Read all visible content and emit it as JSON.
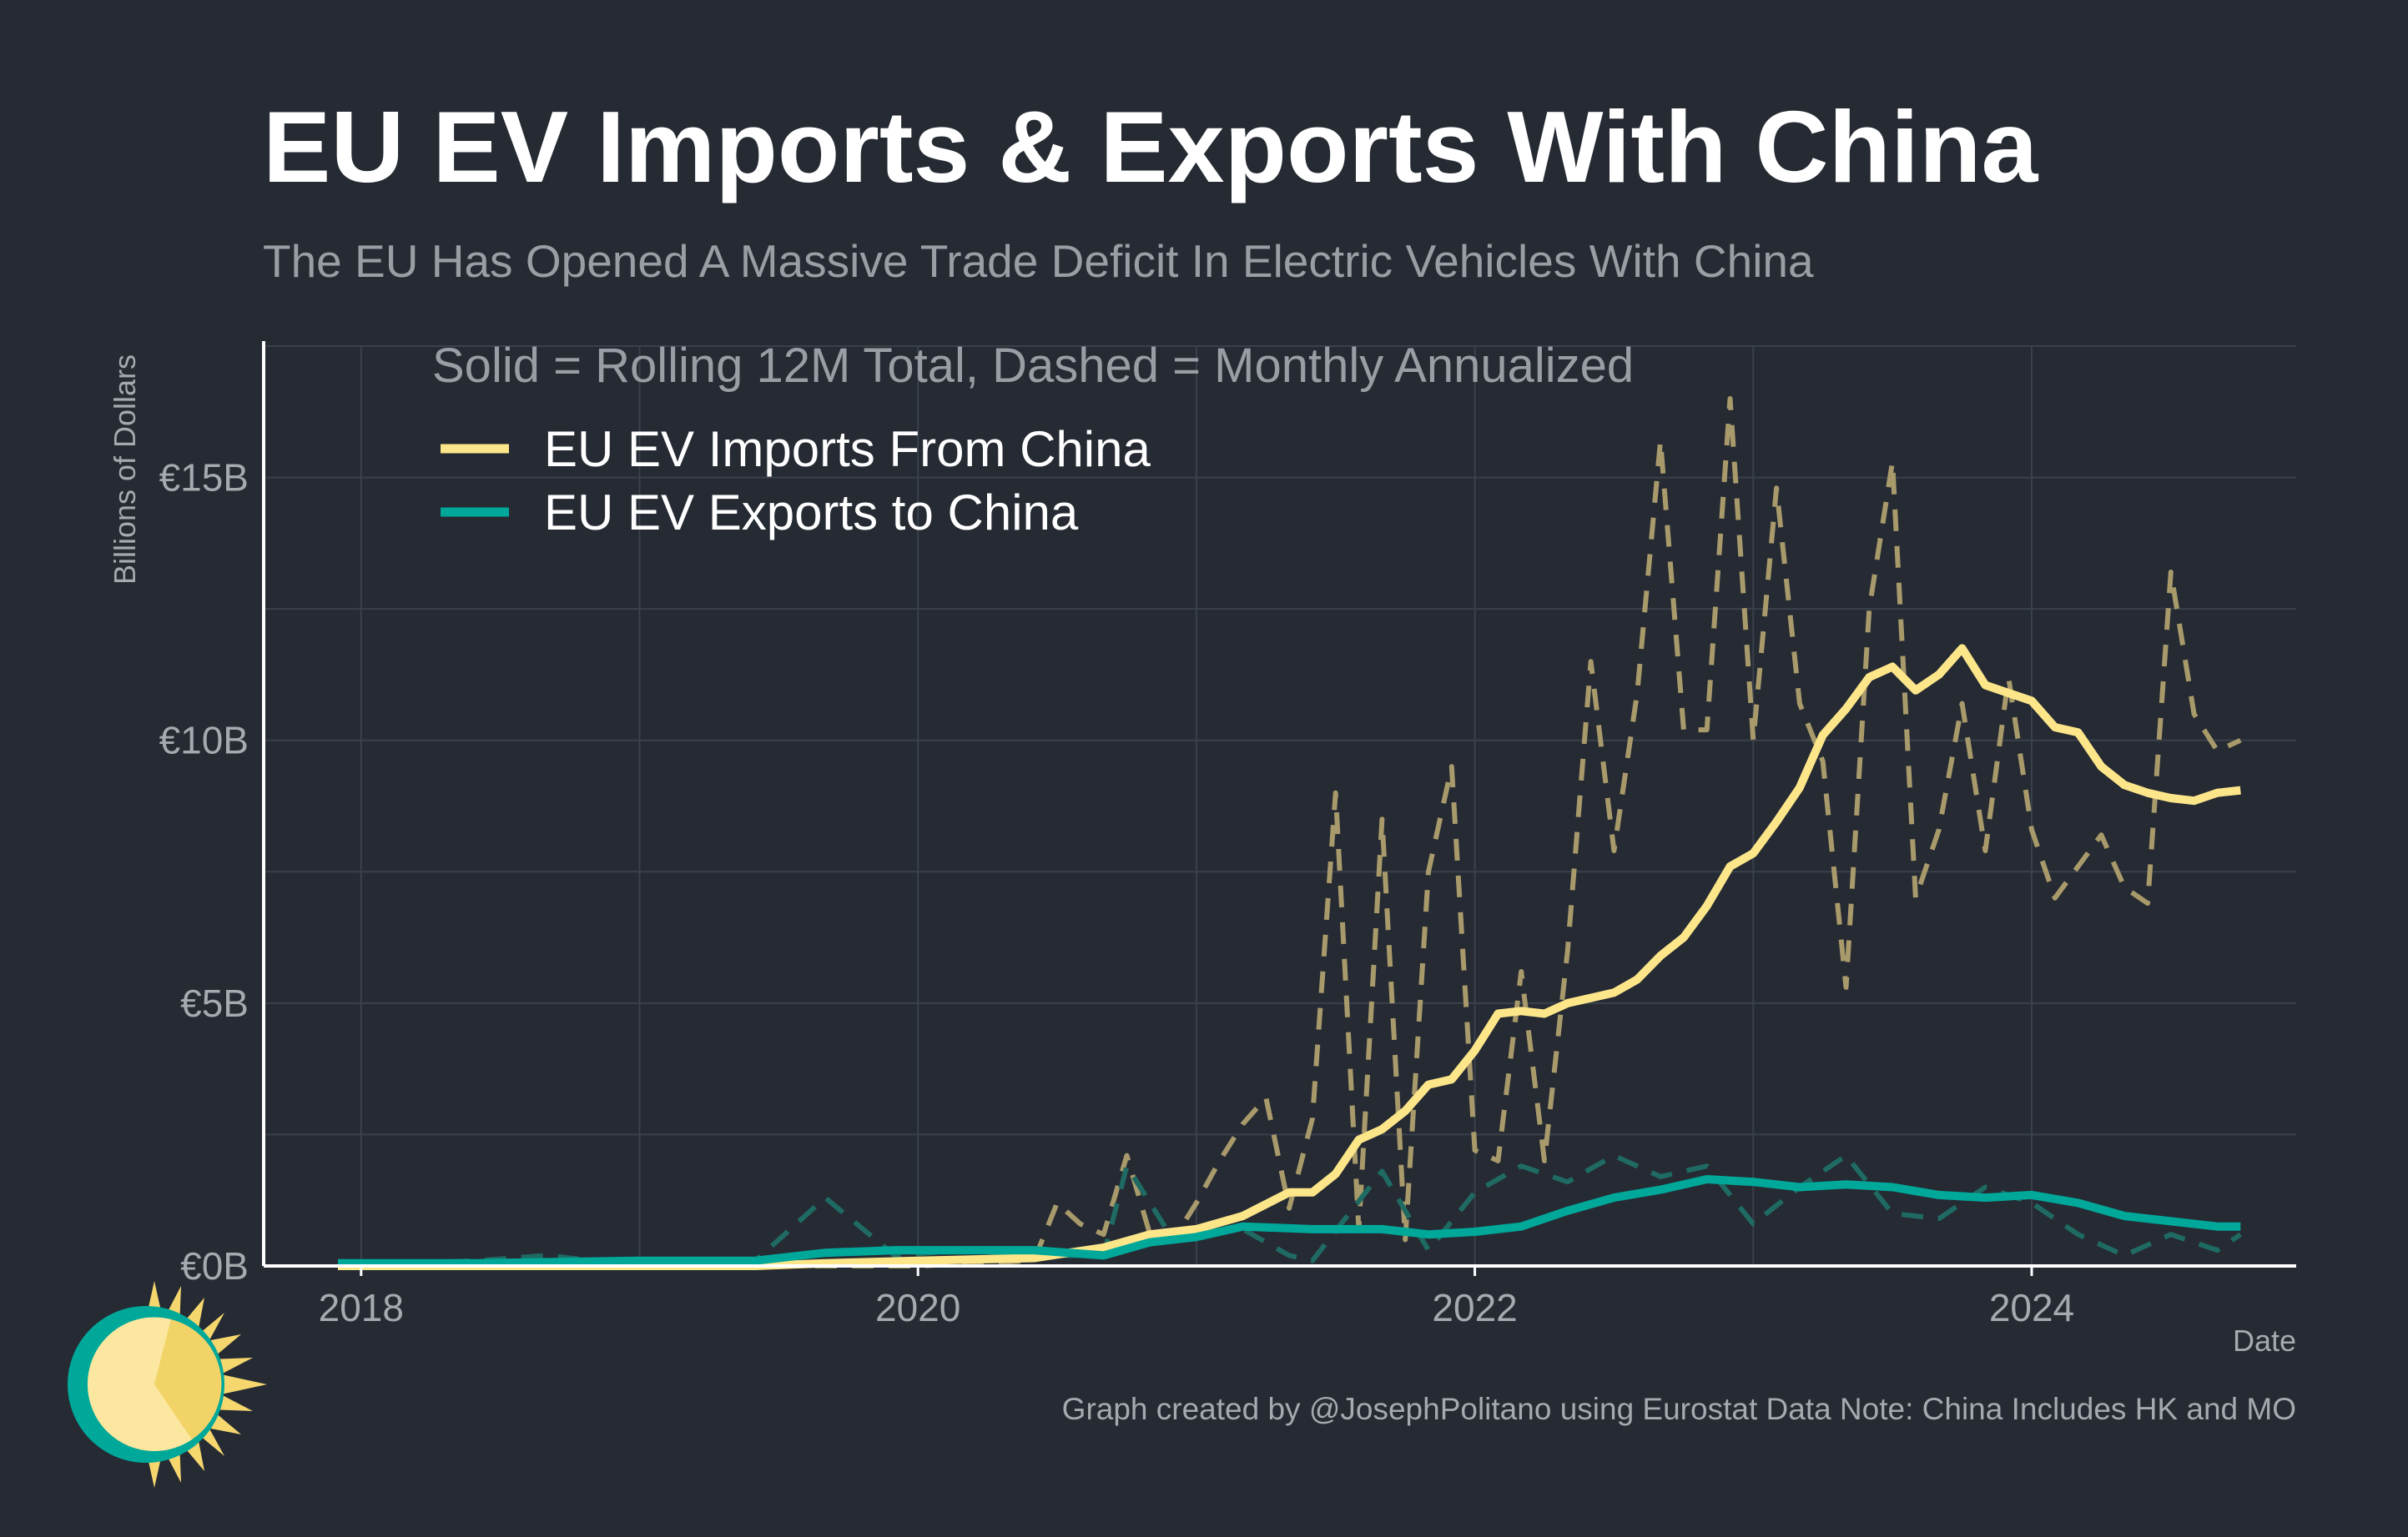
{
  "header": {
    "title": "EU EV Imports & Exports With China",
    "subtitle": "The EU Has Opened A Massive Trade Deficit In Electric Vehicles With China"
  },
  "footer": {
    "caption": "Graph created by @JosephPolitano using Eurostat Data  Note: China Includes HK and MO"
  },
  "chart_data": {
    "type": "line",
    "title": "EU EV Imports & Exports With China",
    "subtitle": "The EU Has Opened A Massive Trade Deficit In Electric Vehicles With China",
    "note": "Solid = Rolling 12M Total, Dashed = Monthly Annualized",
    "xlabel": "Date",
    "ylabel": "Billions of Dollars",
    "x_ticks": [
      "2018",
      "2020",
      "2022",
      "2024"
    ],
    "y_ticks": [
      "€0B",
      "€5B",
      "€10B",
      "€15B"
    ],
    "ylim": [
      0,
      17.5
    ],
    "xlim": [
      2017.65,
      2024.95
    ],
    "grid": true,
    "legend_position": "top-left",
    "colors": {
      "background": "#252a33",
      "grid": "#3b414b",
      "axis": "#ffffff",
      "imports": "#fde68a",
      "imports_dashed": "#a89a6b",
      "exports": "#00a89a",
      "exports_dashed": "#1f6b63"
    },
    "series": [
      {
        "name": "EU EV Imports From China",
        "style": "solid",
        "x": [
          "2017-12",
          "2018-06",
          "2019-01",
          "2019-06",
          "2019-09",
          "2020-01",
          "2020-06",
          "2020-09",
          "2020-11",
          "2021-01",
          "2021-03",
          "2021-05",
          "2021-06",
          "2021-07",
          "2021-08",
          "2021-09",
          "2021-10",
          "2021-11",
          "2021-12",
          "2022-01",
          "2022-02",
          "2022-03",
          "2022-04",
          "2022-05",
          "2022-06",
          "2022-07",
          "2022-08",
          "2022-09",
          "2022-10",
          "2022-11",
          "2022-12",
          "2023-01",
          "2023-02",
          "2023-03",
          "2023-04",
          "2023-05",
          "2023-06",
          "2023-07",
          "2023-08",
          "2023-09",
          "2023-10",
          "2023-11",
          "2023-12",
          "2024-01",
          "2024-02",
          "2024-03",
          "2024-04",
          "2024-05",
          "2024-06",
          "2024-07",
          "2024-08",
          "2024-09",
          "2024-10"
        ],
        "values": [
          0,
          0,
          0,
          0,
          0.05,
          0.1,
          0.15,
          0.35,
          0.6,
          0.7,
          0.95,
          1.4,
          1.4,
          1.75,
          2.4,
          2.6,
          2.95,
          3.45,
          3.55,
          4.1,
          4.8,
          4.85,
          4.8,
          5,
          5.1,
          5.2,
          5.45,
          5.9,
          6.25,
          6.85,
          7.6,
          7.85,
          8.45,
          9.1,
          10.1,
          10.6,
          11.2,
          11.4,
          10.95,
          11.25,
          11.75,
          11.05,
          10.9,
          10.75,
          10.25,
          10.15,
          9.5,
          9.15,
          9,
          8.9,
          8.85,
          9,
          9.05
        ]
      },
      {
        "name": "EU EV Imports From China (Monthly Annualized)",
        "style": "dashed",
        "x": [
          "2017-12",
          "2019-06",
          "2020-01",
          "2020-06",
          "2020-07",
          "2020-08",
          "2020-09",
          "2020-10",
          "2020-11",
          "2020-12",
          "2021-01",
          "2021-02",
          "2021-03",
          "2021-04",
          "2021-05",
          "2021-06",
          "2021-07",
          "2021-08",
          "2021-09",
          "2021-10",
          "2021-11",
          "2021-12",
          "2022-01",
          "2022-02",
          "2022-03",
          "2022-04",
          "2022-05",
          "2022-06",
          "2022-07",
          "2022-08",
          "2022-09",
          "2022-10",
          "2022-11",
          "2022-12",
          "2023-01",
          "2023-02",
          "2023-03",
          "2023-04",
          "2023-05",
          "2023-06",
          "2023-07",
          "2023-08",
          "2023-09",
          "2023-10",
          "2023-11",
          "2023-12",
          "2024-01",
          "2024-02",
          "2024-03",
          "2024-04",
          "2024-05",
          "2024-06",
          "2024-07",
          "2024-08",
          "2024-09",
          "2024-10"
        ],
        "values": [
          0,
          0,
          0,
          0.1,
          1.2,
          0.8,
          0.6,
          2.1,
          0.6,
          0.5,
          1.2,
          2.0,
          2.7,
          3.2,
          1.1,
          2.8,
          9.0,
          0.7,
          8.5,
          0.5,
          7.5,
          9.5,
          2.2,
          2.0,
          5.6,
          2.0,
          6.0,
          11.5,
          7.9,
          10.9,
          15.7,
          10.2,
          10.2,
          16.5,
          10.0,
          14.8,
          10.7,
          9.6,
          5.3,
          12.5,
          15.3,
          7.0,
          8.3,
          10.7,
          7.9,
          11.2,
          8.3,
          7.0,
          7.6,
          8.2,
          7.2,
          6.9,
          13.2,
          10.5,
          9.8,
          10.0
        ]
      },
      {
        "name": "EU EV Exports to China",
        "style": "solid",
        "x": [
          "2017-12",
          "2018-06",
          "2019-01",
          "2019-06",
          "2019-09",
          "2019-12",
          "2020-03",
          "2020-06",
          "2020-09",
          "2020-11",
          "2021-01",
          "2021-03",
          "2021-06",
          "2021-09",
          "2021-11",
          "2022-01",
          "2022-03",
          "2022-05",
          "2022-07",
          "2022-09",
          "2022-11",
          "2023-01",
          "2023-03",
          "2023-05",
          "2023-07",
          "2023-09",
          "2023-11",
          "2024-01",
          "2024-03",
          "2024-05",
          "2024-07",
          "2024-09",
          "2024-10"
        ],
        "values": [
          0.05,
          0.05,
          0.1,
          0.1,
          0.25,
          0.3,
          0.3,
          0.3,
          0.2,
          0.45,
          0.55,
          0.75,
          0.7,
          0.7,
          0.6,
          0.65,
          0.75,
          1.05,
          1.3,
          1.45,
          1.65,
          1.6,
          1.5,
          1.55,
          1.5,
          1.35,
          1.3,
          1.35,
          1.2,
          0.95,
          0.85,
          0.75,
          0.75
        ]
      },
      {
        "name": "EU EV Exports to China (Monthly Annualized)",
        "style": "dashed",
        "x": [
          "2017-12",
          "2018-06",
          "2018-09",
          "2019-01",
          "2019-06",
          "2019-09",
          "2019-12",
          "2020-03",
          "2020-06",
          "2020-09",
          "2020-10",
          "2020-12",
          "2021-01",
          "2021-03",
          "2021-05",
          "2021-06",
          "2021-09",
          "2021-11",
          "2022-01",
          "2022-03",
          "2022-05",
          "2022-07",
          "2022-09",
          "2022-11",
          "2023-01",
          "2023-03",
          "2023-05",
          "2023-07",
          "2023-09",
          "2023-11",
          "2024-01",
          "2024-03",
          "2024-05",
          "2024-07",
          "2024-09",
          "2024-10"
        ],
        "values": [
          0,
          0.1,
          0.2,
          0,
          0.1,
          1.3,
          0.2,
          0.3,
          0.2,
          0.2,
          1.9,
          0.5,
          0.6,
          0.7,
          0.2,
          0.1,
          1.8,
          0.3,
          1.4,
          1.9,
          1.6,
          2.1,
          1.7,
          1.9,
          0.8,
          1.5,
          2.1,
          1.0,
          0.9,
          1.5,
          1.2,
          0.6,
          0.2,
          0.6,
          0.3,
          0.6
        ]
      }
    ]
  }
}
